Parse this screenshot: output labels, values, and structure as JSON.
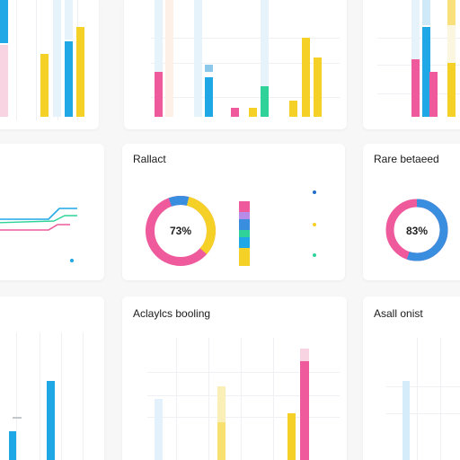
{
  "colors": {
    "pink": "#ee5a9c",
    "blue": "#1fa7e6",
    "yellow": "#f5d128",
    "green": "#2fd39a",
    "lightblue": "#c8e8f8",
    "lightpink": "#f8d3e2",
    "lightyellow": "#fbefb8"
  },
  "card_top_center": {
    "y_ticks": [
      "",
      "",
      "",
      "",
      ""
    ],
    "x_ticks": [
      "",
      "",
      "",
      "",
      "",
      "",
      "",
      "",
      "",
      ""
    ]
  },
  "card_mid_center": {
    "title": "Rallact",
    "subtitle": "",
    "donut_value": "73%",
    "legend_head": "",
    "legend": [
      {
        "label": "",
        "right": ""
      },
      {
        "label": "",
        "right": ""
      },
      {
        "label": "",
        "right": ""
      },
      {
        "label": "",
        "right": ""
      }
    ]
  },
  "card_mid_right": {
    "title": "Rare betaeed",
    "subtitle": "",
    "donut_value": "83%"
  },
  "card_mid_left": {
    "subtitle": "",
    "legend": [
      "",
      "",
      "",
      "",
      ""
    ]
  },
  "card_bottom_center": {
    "title": "Aclaylcs booling",
    "subtitle": "",
    "y_ticks": [
      "",
      "",
      "",
      "",
      ""
    ]
  },
  "card_bottom_right": {
    "title": "Asall onist",
    "subtitle": "",
    "y_ticks": [
      "",
      "",
      "",
      ""
    ]
  }
}
